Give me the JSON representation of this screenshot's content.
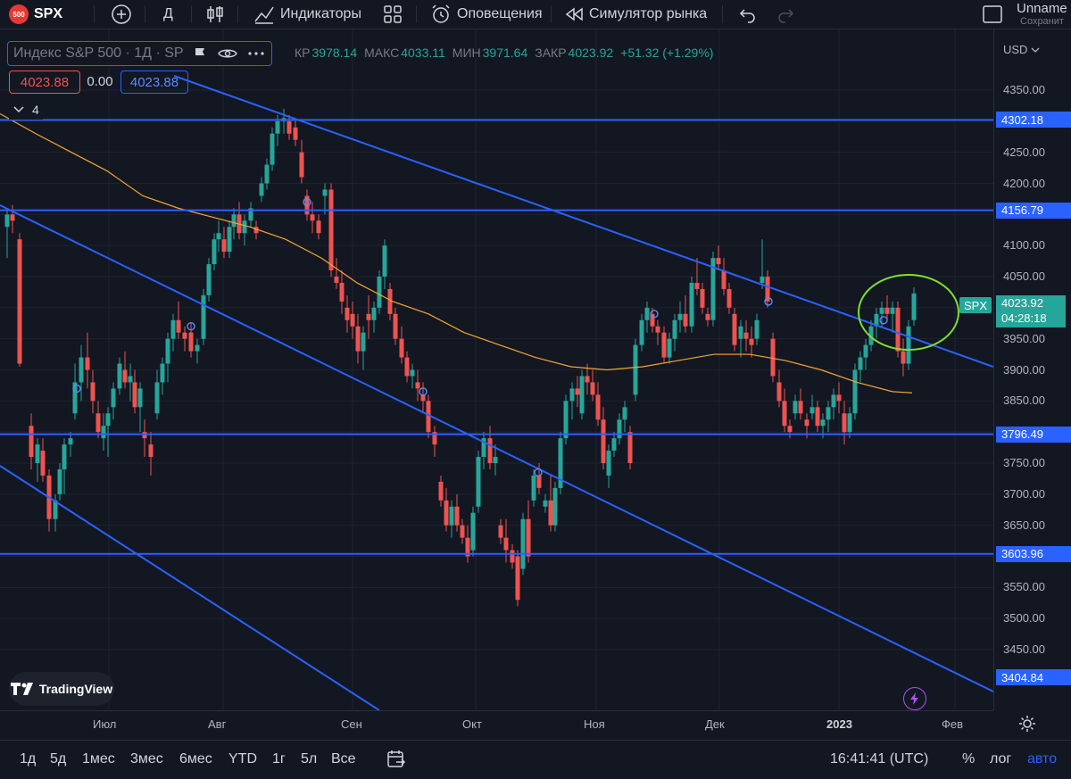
{
  "topbar": {
    "symbol_badge": "500",
    "symbol": "SPX",
    "interval": "Д",
    "indicators_label": "Индикаторы",
    "alerts_label": "Оповещения",
    "replay_label": "Симулятор рынка",
    "layout_name": "Unname",
    "layout_status": "Сохранит"
  },
  "legend": {
    "title": "Индекс S&P 500 · 1Д · SP",
    "o_label": "КР",
    "o_value": "3978.14",
    "h_label": "МАКС",
    "h_value": "4033.11",
    "l_label": "МИН",
    "l_value": "3971.64",
    "c_label": "ЗАКР",
    "c_value": "4023.92",
    "change": "+51.32 (+1.29%)",
    "sell_price": "4023.88",
    "spread": "0.00",
    "buy_price": "4023.88",
    "indicators_count": "4"
  },
  "price_scale": {
    "currency": "USD",
    "ticks": [
      "4350.00",
      "4300.00",
      "4250.00",
      "4200.00",
      "4150.00",
      "4100.00",
      "4050.00",
      "4000.00",
      "3950.00",
      "3900.00",
      "3850.00",
      "3800.00",
      "3750.00",
      "3700.00",
      "3650.00",
      "3600.00",
      "3550.00",
      "3500.00",
      "3450.00"
    ],
    "level_tags": [
      "4302.18",
      "4156.79",
      "3796.49",
      "3603.96",
      "3404.84"
    ],
    "spx_tag": "SPX",
    "last_price": "4023.92",
    "countdown": "04:28:18"
  },
  "time_scale": {
    "labels": [
      "Июл",
      "Авг",
      "Сен",
      "Окт",
      "Ноя",
      "Дек",
      "2023",
      "Фев"
    ]
  },
  "bottombar": {
    "ranges": [
      "1д",
      "5д",
      "1мес",
      "3мес",
      "6мес",
      "YTD",
      "1г",
      "5л",
      "Все"
    ],
    "clock": "16:41:41 (UTC)",
    "percent": "%",
    "log": "лог",
    "auto": "авто"
  },
  "branding": {
    "logo_text": "TradingView"
  },
  "colors": {
    "background": "#131722",
    "up": "#26a69a",
    "down": "#ef5350",
    "trendline": "#2962ff",
    "ma": "#f7a531",
    "highlight_ellipse": "#7ee02b"
  }
}
